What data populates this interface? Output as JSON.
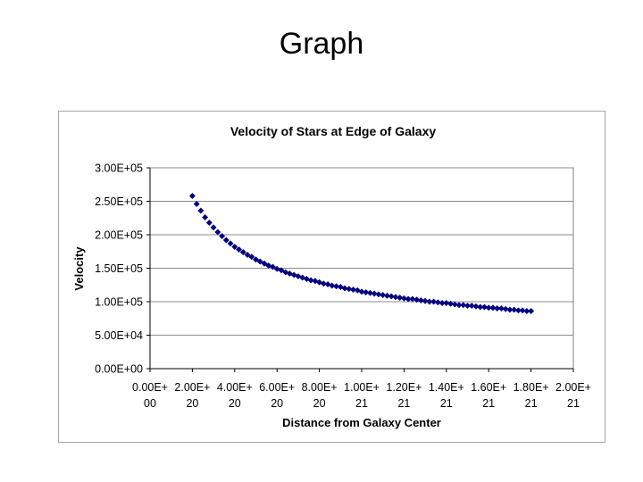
{
  "slide": {
    "title": "Graph"
  },
  "chart_data": {
    "type": "scatter",
    "title": "Velocity of Stars at Edge of Galaxy",
    "xlabel": "Distance from Galaxy Center",
    "ylabel": "Velocity",
    "xlim": [
      0,
      2e+21
    ],
    "ylim": [
      0,
      300000
    ],
    "grid": true,
    "legend": "none",
    "marker_color": "#000080",
    "x_ticks": [
      {
        "value": 0.0,
        "line1": "0.00E+",
        "line2": "00"
      },
      {
        "value": 2e+20,
        "line1": "2.00E+",
        "line2": "20"
      },
      {
        "value": 4e+20,
        "line1": "4.00E+",
        "line2": "20"
      },
      {
        "value": 6e+20,
        "line1": "6.00E+",
        "line2": "20"
      },
      {
        "value": 8e+20,
        "line1": "8.00E+",
        "line2": "20"
      },
      {
        "value": 1e+21,
        "line1": "1.00E+",
        "line2": "21"
      },
      {
        "value": 1.2e+21,
        "line1": "1.20E+",
        "line2": "21"
      },
      {
        "value": 1.4e+21,
        "line1": "1.40E+",
        "line2": "21"
      },
      {
        "value": 1.6e+21,
        "line1": "1.60E+",
        "line2": "21"
      },
      {
        "value": 1.8e+21,
        "line1": "1.80E+",
        "line2": "21"
      },
      {
        "value": 2e+21,
        "line1": "2.00E+",
        "line2": "21"
      }
    ],
    "y_ticks": [
      {
        "value": 0,
        "label": "0.00E+00"
      },
      {
        "value": 50000,
        "label": "5.00E+04"
      },
      {
        "value": 100000,
        "label": "1.00E+05"
      },
      {
        "value": 150000,
        "label": "1.50E+05"
      },
      {
        "value": 200000,
        "label": "2.00E+05"
      },
      {
        "value": 250000,
        "label": "2.50E+05"
      },
      {
        "value": 300000,
        "label": "3.00E+05"
      }
    ],
    "series": [
      {
        "x": [
          2e+20,
          2.2e+20,
          2.4e+20,
          2.6e+20,
          2.8e+20,
          3e+20,
          3.2e+20,
          3.4e+20,
          3.6e+20,
          3.8e+20,
          4e+20,
          4.2e+20,
          4.4e+20,
          4.6e+20,
          4.8e+20,
          5e+20,
          5.2e+20,
          5.4e+20,
          5.6e+20,
          5.8e+20,
          6e+20,
          6.2e+20,
          6.4e+20,
          6.6e+20,
          6.8e+20,
          7e+20,
          7.2e+20,
          7.4e+20,
          7.6e+20,
          7.8e+20,
          8e+20,
          8.2e+20,
          8.4e+20,
          8.6e+20,
          8.8e+20,
          9e+20,
          9.2e+20,
          9.4e+20,
          9.6e+20,
          9.8e+20,
          1e+21,
          1.02e+21,
          1.04e+21,
          1.06e+21,
          1.08e+21,
          1.1e+21,
          1.12e+21,
          1.14e+21,
          1.16e+21,
          1.18e+21,
          1.2e+21,
          1.22e+21,
          1.24e+21,
          1.26e+21,
          1.28e+21,
          1.3e+21,
          1.32e+21,
          1.34e+21,
          1.36e+21,
          1.38e+21,
          1.4e+21,
          1.42e+21,
          1.44e+21,
          1.46e+21,
          1.48e+21,
          1.5e+21,
          1.52e+21,
          1.54e+21,
          1.56e+21,
          1.58e+21,
          1.6e+21,
          1.62e+21,
          1.64e+21,
          1.66e+21,
          1.68e+21,
          1.7e+21,
          1.72e+21,
          1.74e+21,
          1.76e+21,
          1.78e+21,
          1.8e+21
        ],
        "y": [
          258000,
          246000,
          236000,
          226000,
          218000,
          211000,
          204000,
          198000,
          192000,
          187000,
          182000,
          178000,
          174000,
          170000,
          167000,
          163000,
          160000,
          157000,
          154000,
          152000,
          149000,
          147000,
          144000,
          142000,
          140000,
          138000,
          136000,
          134000,
          132000,
          131000,
          129000,
          127000,
          126000,
          124000,
          123000,
          122000,
          120000,
          119000,
          118000,
          117000,
          115000,
          114000,
          113000,
          112000,
          111000,
          110000,
          109000,
          108000,
          107000,
          106000,
          105000,
          104000,
          104000,
          103000,
          102000,
          101000,
          100000,
          100000,
          99000,
          98000,
          98000,
          97000,
          96000,
          95000,
          95000,
          94000,
          94000,
          93000,
          92000,
          92000,
          91000,
          91000,
          90000,
          90000,
          89000,
          88000,
          88000,
          87000,
          87000,
          86000,
          86000
        ]
      }
    ]
  }
}
